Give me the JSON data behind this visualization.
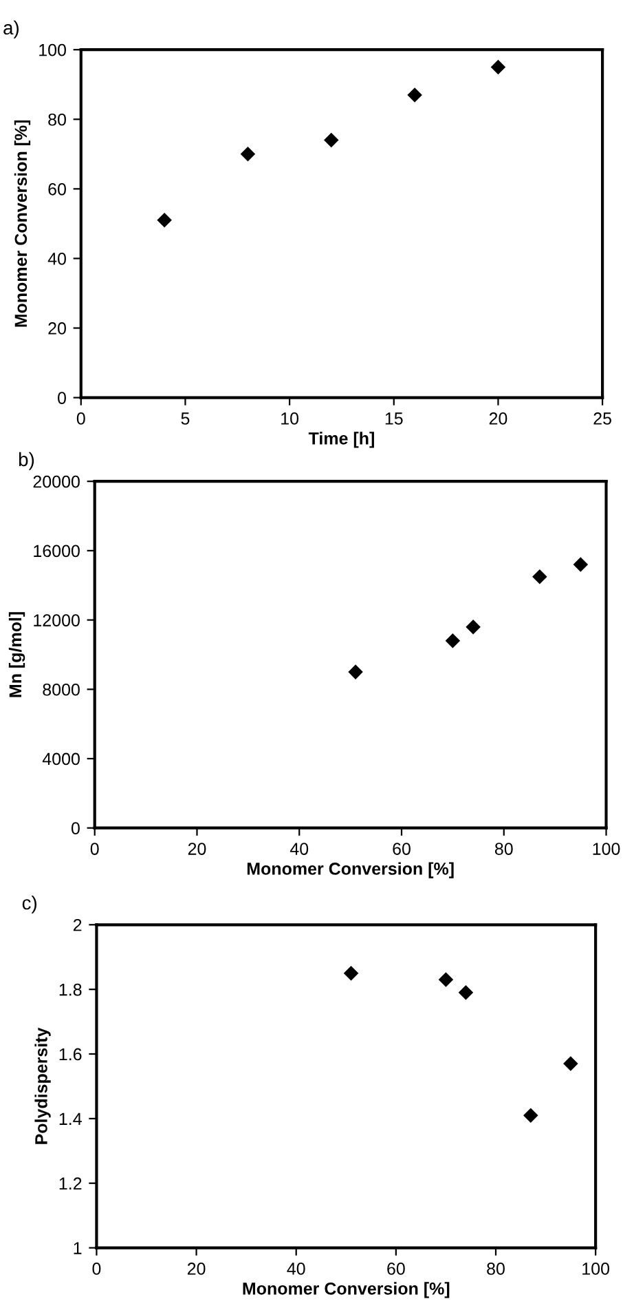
{
  "chart_data": [
    {
      "type": "scatter",
      "title": "a)",
      "xlabel": "Time [h]",
      "ylabel": "Monomer Conversion [%]",
      "x": [
        4,
        8,
        12,
        16,
        20
      ],
      "values": [
        51,
        70,
        74,
        87,
        95
      ],
      "color": "#000000",
      "marker": "diamond",
      "xlim": [
        0,
        25
      ],
      "xticks": [
        0,
        5,
        10,
        15,
        20,
        25
      ],
      "ylim": [
        0,
        100
      ],
      "yticks": [
        0,
        20,
        40,
        60,
        80,
        100
      ],
      "grid": false,
      "legend": false
    },
    {
      "type": "scatter",
      "title": "b)",
      "xlabel": "Monomer Conversion [%]",
      "ylabel": "Mn [g/mol]",
      "x": [
        51,
        70,
        74,
        87,
        95
      ],
      "values": [
        9000,
        10800,
        11600,
        14500,
        15200
      ],
      "color": "#000000",
      "marker": "diamond",
      "xlim": [
        0,
        100
      ],
      "xticks": [
        0,
        20,
        40,
        60,
        80,
        100
      ],
      "ylim": [
        0,
        20000
      ],
      "yticks": [
        0,
        4000,
        8000,
        12000,
        16000,
        20000
      ],
      "grid": false,
      "legend": false
    },
    {
      "type": "scatter",
      "title": "c)",
      "xlabel": "Monomer Conversion [%]",
      "ylabel": "Polydispersity",
      "x": [
        51,
        70,
        74,
        87,
        95
      ],
      "values": [
        1.85,
        1.83,
        1.79,
        1.41,
        1.57
      ],
      "color": "#000000",
      "marker": "diamond",
      "xlim": [
        0,
        100
      ],
      "xticks": [
        0,
        20,
        40,
        60,
        80,
        100
      ],
      "ylim": [
        1,
        2
      ],
      "yticks": [
        1,
        1.2,
        1.4,
        1.6,
        1.8,
        2
      ],
      "grid": false,
      "legend": false
    }
  ]
}
